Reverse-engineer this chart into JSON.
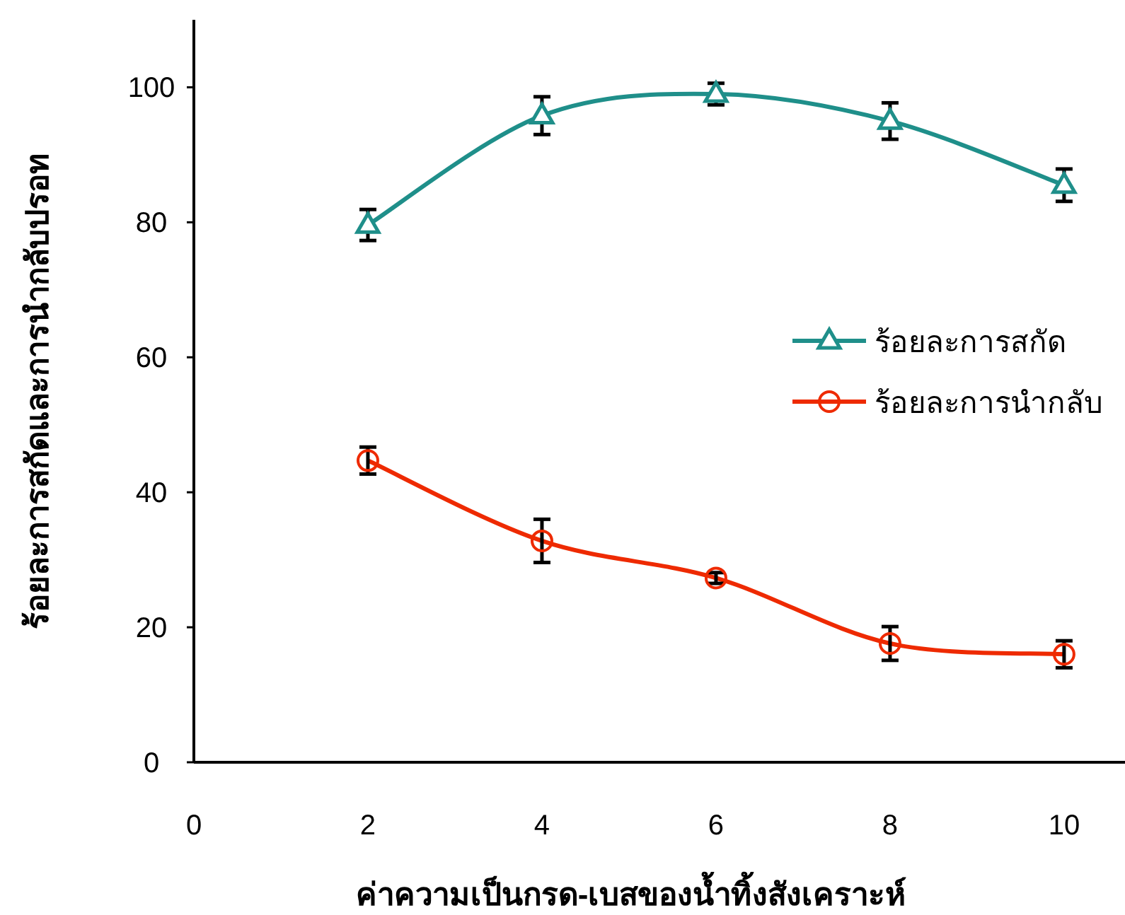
{
  "chart_data": {
    "type": "line",
    "xlabel": "ค่าความเป็นกรด-เบสของน้ำทิ้งสังเคราะห์",
    "ylabel": "ร้อยละการสกัดและการนำกลับปรอท",
    "x": [
      2,
      4,
      6,
      8,
      10
    ],
    "series": [
      {
        "name": "ร้อยละการสกัด",
        "color": "#1f8f8a",
        "marker": "triangle",
        "values": [
          79.6,
          95.8,
          99,
          95,
          85.5
        ],
        "errors": [
          2.3,
          2.8,
          1.6,
          2.7,
          2.4
        ]
      },
      {
        "name": "ร้อยละการนำกลับ",
        "color": "#ee2a00",
        "marker": "circle",
        "values": [
          44.7,
          32.8,
          27.3,
          17.6,
          16
        ],
        "errors": [
          2,
          3.2,
          0.8,
          2.5,
          2
        ]
      }
    ],
    "xlim": [
      0,
      10.7
    ],
    "ylim": [
      0,
      110
    ],
    "xticks": [
      0,
      2,
      4,
      6,
      8,
      10
    ],
    "yticks": [
      0,
      20,
      40,
      60,
      80,
      100
    ],
    "legend": "right",
    "line_style": "solid"
  }
}
